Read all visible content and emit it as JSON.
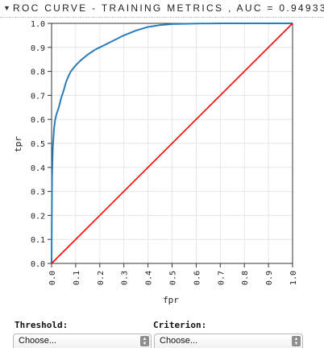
{
  "panel": {
    "title": "ROC CURVE - TRAINING METRICS , AUC = 0.94933"
  },
  "chart_data": {
    "type": "line",
    "title": "ROC CURVE - TRAINING METRICS , AUC = 0.94933",
    "xlabel": "fpr",
    "ylabel": "tpr",
    "xlim": [
      0,
      1
    ],
    "ylim": [
      0,
      1
    ],
    "x_ticks": [
      "0.0",
      "0.1",
      "0.2",
      "0.3",
      "0.4",
      "0.5",
      "0.6",
      "0.7",
      "0.8",
      "0.9",
      "1.0"
    ],
    "y_ticks": [
      "0.0",
      "0.1",
      "0.2",
      "0.3",
      "0.4",
      "0.5",
      "0.6",
      "0.7",
      "0.8",
      "0.9",
      "1.0"
    ],
    "grid": true,
    "series": [
      {
        "color": "#2b7bb9",
        "x": [
          0,
          0.002,
          0.005,
          0.01,
          0.015,
          0.02,
          0.03,
          0.04,
          0.05,
          0.06,
          0.07,
          0.08,
          0.1,
          0.12,
          0.15,
          0.18,
          0.2,
          0.25,
          0.3,
          0.35,
          0.4,
          0.45,
          0.5,
          0.6,
          0.7,
          0.8,
          0.9,
          1.0
        ],
        "y": [
          0,
          0.36,
          0.48,
          0.56,
          0.6,
          0.62,
          0.65,
          0.69,
          0.72,
          0.755,
          0.78,
          0.8,
          0.825,
          0.845,
          0.87,
          0.89,
          0.9,
          0.925,
          0.95,
          0.97,
          0.985,
          0.993,
          0.997,
          0.999,
          1.0,
          1.0,
          1.0,
          1.0
        ]
      },
      {
        "color": "#ff0000",
        "x": [
          0,
          1
        ],
        "y": [
          0,
          1
        ]
      }
    ]
  },
  "controls": {
    "threshold_label": "Threshold:",
    "threshold_value": "Choose...",
    "criterion_label": "Criterion:",
    "criterion_value": "Choose..."
  }
}
